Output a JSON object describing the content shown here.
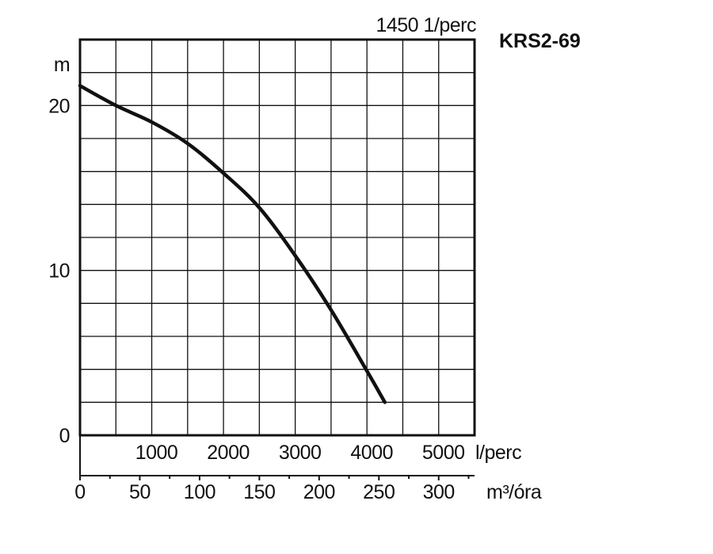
{
  "chart_data": {
    "type": "line",
    "title": "KRS2-69",
    "speed_label": "1450 1/perc",
    "ylabel": "m",
    "ylim": [
      0,
      24
    ],
    "yticks": [
      0,
      10,
      20
    ],
    "x_lps": {
      "unit": "l/perc",
      "lim": [
        0,
        5500
      ],
      "ticks": [
        1000,
        2000,
        3000,
        4000,
        5000
      ],
      "tick_labels": [
        "1000",
        "2000",
        "3000",
        "4000",
        "5000"
      ]
    },
    "x_m3h": {
      "unit": "m³/óra",
      "lim": [
        0,
        330
      ],
      "ticks": [
        0,
        50,
        100,
        150,
        200,
        250,
        300
      ],
      "tick_labels": [
        "0",
        "50",
        "100",
        "150",
        "200",
        "250",
        "300"
      ]
    },
    "grid": true,
    "series": [
      {
        "x": [
          0,
          500,
          1000,
          1500,
          2000,
          2500,
          3000,
          3500,
          4000,
          4250
        ],
        "y": [
          21.2,
          20.0,
          19.0,
          17.7,
          15.9,
          13.8,
          10.9,
          7.6,
          3.9,
          2.0
        ]
      }
    ]
  }
}
